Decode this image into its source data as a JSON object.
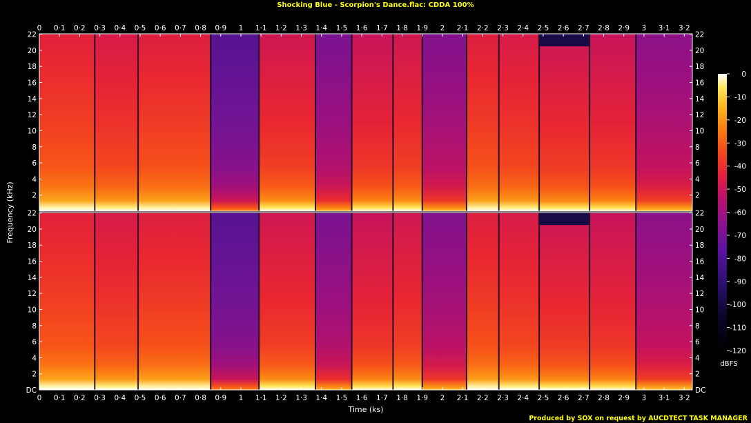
{
  "title": "Shocking Blue - Scorpion's Dance.flac: CDDA 100%",
  "footer": "Produced by SOX on request by AUCDTECT TASK MANAGER",
  "colors": {
    "title": "#ffff00",
    "axis_text": "#ffffff",
    "footer": "#ffff00",
    "background": "#000000"
  },
  "chart_data": {
    "type": "heatmap",
    "xlabel": "Time (ks)",
    "ylabel": "Frequency (kHz)",
    "colorbar_label": "dBFS",
    "xlim": [
      0,
      3.24
    ],
    "ylim": [
      0,
      22.05
    ],
    "x_ticks": [
      0,
      0.1,
      0.2,
      0.3,
      0.4,
      0.5,
      0.6,
      0.7,
      0.8,
      0.9,
      1,
      1.1,
      1.2,
      1.3,
      1.4,
      1.5,
      1.6,
      1.7,
      1.8,
      1.9,
      2,
      2.1,
      2.2,
      2.3,
      2.4,
      2.5,
      2.6,
      2.7,
      2.8,
      2.9,
      3,
      3.1,
      3.2
    ],
    "x_tick_labels": [
      "0",
      "0·1",
      "0·2",
      "0·3",
      "0·4",
      "0·5",
      "0·6",
      "0·7",
      "0·8",
      "0·9",
      "1",
      "1·1",
      "1·2",
      "1·3",
      "1·4",
      "1·5",
      "1·6",
      "1·7",
      "1·8",
      "1·9",
      "2",
      "2·1",
      "2·2",
      "2·3",
      "2·4",
      "2·5",
      "2·6",
      "2·7",
      "2·8",
      "2·9",
      "3",
      "3·1",
      "3·2"
    ],
    "y_ticks": [
      2,
      4,
      6,
      8,
      10,
      12,
      14,
      16,
      18,
      20,
      22
    ],
    "y_tick_labels": [
      "2",
      "4",
      "6",
      "8",
      "10",
      "12",
      "14",
      "16",
      "18",
      "20",
      "22"
    ],
    "y_bottom_label": "DC",
    "colorbar_ticks": [
      0,
      -10,
      -20,
      -30,
      -40,
      -50,
      -60,
      -70,
      -80,
      -90,
      -100,
      -110,
      -120
    ],
    "colorbar_range": [
      -120,
      0
    ],
    "channels": [
      "left",
      "right"
    ],
    "track_boundaries_ks": [
      0.275,
      0.49,
      0.85,
      1.09,
      1.37,
      1.55,
      1.755,
      1.9,
      2.12,
      2.28,
      2.48,
      2.73,
      2.96
    ],
    "segments": [
      {
        "start": 0,
        "end": 0.275,
        "level_db": -45,
        "cutoff_khz": 22
      },
      {
        "start": 0.275,
        "end": 0.49,
        "level_db": -48,
        "cutoff_khz": 22
      },
      {
        "start": 0.49,
        "end": 0.85,
        "level_db": -46,
        "cutoff_khz": 22
      },
      {
        "start": 0.85,
        "end": 1.09,
        "level_db": -80,
        "cutoff_khz": 22
      },
      {
        "start": 1.09,
        "end": 1.37,
        "level_db": -50,
        "cutoff_khz": 22
      },
      {
        "start": 1.37,
        "end": 1.55,
        "level_db": -70,
        "cutoff_khz": 22
      },
      {
        "start": 1.55,
        "end": 1.755,
        "level_db": -52,
        "cutoff_khz": 22
      },
      {
        "start": 1.755,
        "end": 1.9,
        "level_db": -50,
        "cutoff_khz": 22
      },
      {
        "start": 1.9,
        "end": 2.12,
        "level_db": -68,
        "cutoff_khz": 22
      },
      {
        "start": 2.12,
        "end": 2.28,
        "level_db": -46,
        "cutoff_khz": 22
      },
      {
        "start": 2.28,
        "end": 2.48,
        "level_db": -48,
        "cutoff_khz": 22
      },
      {
        "start": 2.48,
        "end": 2.73,
        "level_db": -50,
        "cutoff_khz": 20.5
      },
      {
        "start": 2.73,
        "end": 2.96,
        "level_db": -52,
        "cutoff_khz": 22
      },
      {
        "start": 2.96,
        "end": 3.24,
        "level_db": -66,
        "cutoff_khz": 22
      }
    ]
  }
}
